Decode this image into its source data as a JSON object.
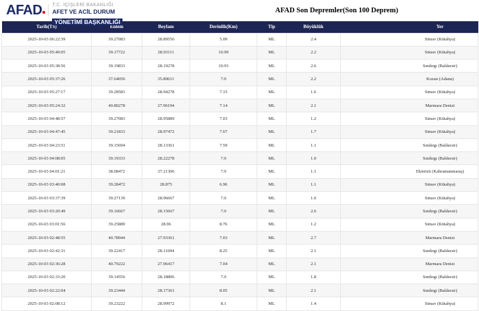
{
  "brand": {
    "logo_text": "AFAD",
    "tagline_line1": "T.C. İÇİŞLERİ BAKANLIĞI",
    "tagline_line2": "AFET VE ACİL DURUM",
    "tagline_line3": "YÖNETİMİ BAŞKANLIĞI"
  },
  "page": {
    "title": "AFAD Son Depremler(Son 100 Deprem)"
  },
  "colors": {
    "table_header_bg": "#1d2554",
    "logo_navy": "#1c2a63",
    "logo_red": "#e30a17",
    "row_alt_bg": "#f6f6f6",
    "grid_line": "#e6e6e6"
  },
  "table": {
    "columns": [
      "Tarih(TS)",
      "Enlem",
      "Boylam",
      "Derinlik(Km)",
      "Tip",
      "Büyüklük",
      "Yer"
    ],
    "column_keys": [
      "date",
      "latitude",
      "longitude",
      "depth",
      "type",
      "magnitude",
      "location"
    ],
    "rows": [
      [
        "2025-10-03 06:22:39",
        "39.27083",
        "28.89556",
        "5.09",
        "ML",
        "2.4",
        "Simav (Kütahya)"
      ],
      [
        "2025-10-03 05:49:05",
        "39.17722",
        "28.93111",
        "10.99",
        "ML",
        "2.2",
        "Simav (Kütahya)"
      ],
      [
        "2025-10-03 05:38:56",
        "39.19833",
        "28.19278",
        "10.93",
        "ML",
        "2.6",
        "Sındırgı (Balıkesir)"
      ],
      [
        "2025-10-03 05:37:26",
        "37.64056",
        "35.89611",
        "7.0",
        "ML",
        "2.2",
        "Kozan (Adana)"
      ],
      [
        "2025-10-03 05:27:17",
        "39.28583",
        "28.94278",
        "7.15",
        "ML",
        "1.6",
        "Simav (Kütahya)"
      ],
      [
        "2025-10-03 05:24:32",
        "40.80278",
        "27.96194",
        "7.14",
        "ML",
        "2.1",
        "Marmara Denizi"
      ],
      [
        "2025-10-03 04:48:57",
        "39.27083",
        "28.95889",
        "7.03",
        "ML",
        "1.2",
        "Simav (Kütahya)"
      ],
      [
        "2025-10-03 04:47:45",
        "39.21833",
        "28.97472",
        "7.67",
        "ML",
        "1.7",
        "Simav (Kütahya)"
      ],
      [
        "2025-10-03 04:23:51",
        "39.15694",
        "28.13361",
        "7.59",
        "ML",
        "1.1",
        "Sındırgı (Balıkesir)"
      ],
      [
        "2025-10-03 04:08:05",
        "39.19333",
        "28.22278",
        "7.0",
        "ML",
        "1.0",
        "Sındırgı (Balıkesir)"
      ],
      [
        "2025-10-03 04:01:21",
        "38.08472",
        "37.21306",
        "7.0",
        "ML",
        "1.1",
        "Ekinözü (Kahramanmaraş)"
      ],
      [
        "2025-10-03 03:40:08",
        "39.28472",
        "28.875",
        "6.96",
        "ML",
        "1.1",
        "Simav (Kütahya)"
      ],
      [
        "2025-10-03 03:37:39",
        "39.27139",
        "28.96667",
        "7.0",
        "ML",
        "1.0",
        "Simav (Kütahya)"
      ],
      [
        "2025-10-03 03:20:49",
        "39.16667",
        "28.15667",
        "7.0",
        "ML",
        "2.6",
        "Sındırgı (Balıkesir)"
      ],
      [
        "2025-10-03 03:01:56",
        "39.25889",
        "28.96",
        "8.76",
        "ML",
        "1.2",
        "Simav (Kütahya)"
      ],
      [
        "2025-10-03 02:48:55",
        "40.78944",
        "27.93361",
        "7.03",
        "ML",
        "2.7",
        "Marmara Denizi"
      ],
      [
        "2025-10-03 02:42:31",
        "39.22417",
        "28.11694",
        "8.25",
        "ML",
        "2.1",
        "Sındırgı (Balıkesir)"
      ],
      [
        "2025-10-03 02:36:28",
        "40.79222",
        "27.96417",
        "7.04",
        "ML",
        "2.1",
        "Marmara Denizi"
      ],
      [
        "2025-10-03 02:33:20",
        "39.14556",
        "28.18806",
        "7.0",
        "ML",
        "1.8",
        "Sındırgı (Balıkesir)"
      ],
      [
        "2025-10-03 02:22:04",
        "39.23444",
        "28.17361",
        "8.05",
        "ML",
        "2.1",
        "Sındırgı (Balıkesir)"
      ],
      [
        "2025-10-03 02:08:12",
        "39.23222",
        "28.99972",
        "8.1",
        "ML",
        "1.4",
        "Simav (Kütahya)"
      ]
    ]
  }
}
